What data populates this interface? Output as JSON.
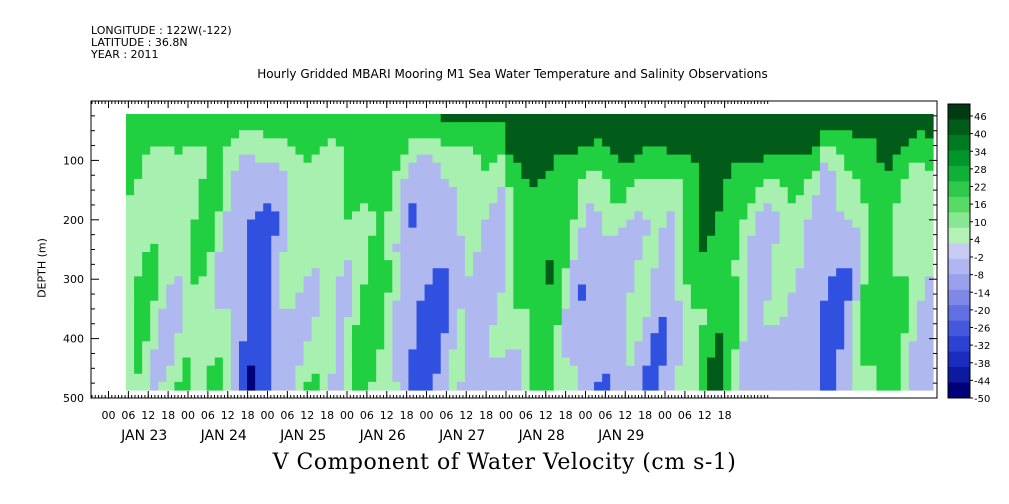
{
  "header": {
    "longitude": "LONGITUDE : 122W(-122)",
    "latitude": "LATITUDE : 36.8N",
    "year": "YEAR : 2011"
  },
  "chart_data": {
    "type": "heatmap",
    "title": "Hourly Gridded MBARI Mooring M1 Sea Water Temperature and Salinity Observations",
    "xlabel": "V Component of Water Velocity (cm s-1)",
    "ylabel": "DEPTH (m)",
    "ylim": [
      500,
      0
    ],
    "y_ticks": [
      100,
      200,
      300,
      400,
      500
    ],
    "x_hour_ticks": [
      "00",
      "06",
      "12",
      "18",
      "00",
      "06",
      "12",
      "18",
      "00",
      "06",
      "12",
      "18",
      "00",
      "06",
      "12",
      "18",
      "00",
      "06",
      "12",
      "18",
      "00",
      "06",
      "12",
      "18",
      "00",
      "06",
      "12",
      "18",
      "00",
      "06",
      "12",
      "18"
    ],
    "x_day_labels": [
      "JAN 23",
      "JAN 24",
      "JAN 25",
      "JAN 26",
      "JAN 27",
      "JAN 28",
      "JAN 29"
    ],
    "colorbar_labels": [
      "46",
      "40",
      "34",
      "28",
      "22",
      "16",
      "10",
      "4",
      "-2",
      "-8",
      "-14",
      "-20",
      "-26",
      "-32",
      "-38",
      "-44",
      "-50"
    ],
    "colorbar_range": [
      -50,
      49
    ],
    "colors": {
      "strong_negative": "#00007a",
      "negative": "#3050e0",
      "weak_negative": "#b0b8f0",
      "weak_positive": "#a8f0b0",
      "positive": "#20d040",
      "strong_positive": "#005c18"
    }
  }
}
